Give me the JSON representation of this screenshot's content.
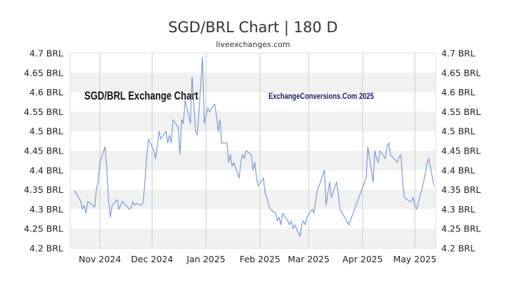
{
  "chart_data": {
    "type": "line",
    "title": "SGD/BRL Chart | 180 D",
    "subtitle": "liveexchanges.com",
    "annotations": [
      "SGD/BRL Exchange Chart",
      "ExchangeConversions.Com 2025"
    ],
    "xlabel": "",
    "ylabel": "",
    "y_ticks": [
      "4.2 BRL",
      "4.25 BRL",
      "4.3 BRL",
      "4.35 BRL",
      "4.4 BRL",
      "4.45 BRL",
      "4.5 BRL",
      "4.55 BRL",
      "4.6 BRL",
      "4.65 BRL",
      "4.7 BRL"
    ],
    "ylim": [
      4.2,
      4.7
    ],
    "x_ticks": [
      {
        "label": "Nov 2024",
        "date": "2024-11-01"
      },
      {
        "label": "Dec 2024",
        "date": "2024-12-01"
      },
      {
        "label": "Jan 2025",
        "date": "2025-01-01"
      },
      {
        "label": "Feb 2025",
        "date": "2025-02-01"
      },
      {
        "label": "Mar 2025",
        "date": "2025-03-01"
      },
      {
        "label": "Apr 2025",
        "date": "2025-04-01"
      },
      {
        "label": "May 2025",
        "date": "2025-05-01"
      }
    ],
    "xlim": [
      "2024-10-15",
      "2025-05-13"
    ],
    "grid": "horizontal bands",
    "line_color": "#6f94d6",
    "series": [
      {
        "x": [
          "2024-10-17",
          "2024-10-18",
          "2024-10-21",
          "2024-10-22",
          "2024-10-23",
          "2024-10-24",
          "2024-10-25",
          "2024-10-28",
          "2024-10-29",
          "2024-10-30",
          "2024-10-31",
          "2024-11-01",
          "2024-11-04",
          "2024-11-05",
          "2024-11-06",
          "2024-11-07",
          "2024-11-08",
          "2024-11-11",
          "2024-11-12",
          "2024-11-13",
          "2024-11-14",
          "2024-11-15",
          "2024-11-18",
          "2024-11-19",
          "2024-11-20",
          "2024-11-21",
          "2024-11-22",
          "2024-11-25",
          "2024-11-26",
          "2024-11-27",
          "2024-11-28",
          "2024-11-29",
          "2024-12-02",
          "2024-12-03",
          "2024-12-04",
          "2024-12-05",
          "2024-12-06",
          "2024-12-09",
          "2024-12-10",
          "2024-12-11",
          "2024-12-12",
          "2024-12-13",
          "2024-12-16",
          "2024-12-17",
          "2024-12-18",
          "2024-12-19",
          "2024-12-20",
          "2024-12-23",
          "2024-12-24",
          "2024-12-26",
          "2024-12-27",
          "2024-12-30",
          "2024-12-31",
          "2025-01-02",
          "2025-01-03",
          "2025-01-06",
          "2025-01-07",
          "2025-01-08",
          "2025-01-09",
          "2025-01-10",
          "2025-01-13",
          "2025-01-14",
          "2025-01-15",
          "2025-01-16",
          "2025-01-17",
          "2025-01-20",
          "2025-01-21",
          "2025-01-22",
          "2025-01-23",
          "2025-01-24",
          "2025-01-27",
          "2025-01-28",
          "2025-01-29",
          "2025-01-30",
          "2025-01-31",
          "2025-02-03",
          "2025-02-04",
          "2025-02-05",
          "2025-02-06",
          "2025-02-07",
          "2025-02-10",
          "2025-02-11",
          "2025-02-12",
          "2025-02-13",
          "2025-02-14",
          "2025-02-17",
          "2025-02-18",
          "2025-02-19",
          "2025-02-20",
          "2025-02-21",
          "2025-02-24",
          "2025-02-25",
          "2025-02-26",
          "2025-02-27",
          "2025-02-28",
          "2025-03-03",
          "2025-03-04",
          "2025-03-05",
          "2025-03-06",
          "2025-03-07",
          "2025-03-10",
          "2025-03-11",
          "2025-03-12",
          "2025-03-13",
          "2025-03-14",
          "2025-03-17",
          "2025-03-18",
          "2025-03-19",
          "2025-03-24",
          "2025-04-03",
          "2025-04-04",
          "2025-04-07",
          "2025-04-08",
          "2025-04-09",
          "2025-04-10",
          "2025-04-11",
          "2025-04-14",
          "2025-04-15",
          "2025-04-16",
          "2025-04-17",
          "2025-04-21",
          "2025-04-22",
          "2025-04-23",
          "2025-04-24",
          "2025-04-25",
          "2025-04-28",
          "2025-04-29",
          "2025-04-30",
          "2025-05-01",
          "2025-05-02",
          "2025-05-05",
          "2025-05-06",
          "2025-05-07",
          "2025-05-08",
          "2025-05-09",
          "2025-05-12"
        ],
        "y": [
          4.345,
          4.345,
          4.32,
          4.3,
          4.31,
          4.29,
          4.32,
          4.31,
          4.305,
          4.35,
          4.37,
          4.42,
          4.46,
          4.4,
          4.32,
          4.28,
          4.31,
          4.325,
          4.3,
          4.31,
          4.32,
          4.315,
          4.3,
          4.305,
          4.32,
          4.31,
          4.315,
          4.31,
          4.32,
          4.38,
          4.44,
          4.48,
          4.45,
          4.43,
          4.46,
          4.5,
          4.48,
          4.5,
          4.47,
          4.49,
          4.47,
          4.53,
          4.51,
          4.44,
          4.53,
          4.52,
          4.58,
          4.52,
          4.64,
          4.5,
          4.49,
          4.69,
          4.52,
          4.56,
          4.55,
          4.57,
          4.54,
          4.5,
          4.53,
          4.47,
          4.47,
          4.42,
          4.44,
          4.41,
          4.42,
          4.38,
          4.42,
          4.44,
          4.43,
          4.45,
          4.44,
          4.4,
          4.42,
          4.38,
          4.36,
          4.38,
          4.34,
          4.33,
          4.31,
          4.3,
          4.29,
          4.27,
          4.28,
          4.26,
          4.29,
          4.27,
          4.26,
          4.27,
          4.25,
          4.26,
          4.23,
          4.26,
          4.27,
          4.26,
          4.28,
          4.3,
          4.29,
          4.32,
          4.35,
          4.36,
          4.4,
          4.31,
          4.34,
          4.37,
          4.33,
          4.37,
          4.34,
          4.3,
          4.26,
          4.38,
          4.46,
          4.37,
          4.45,
          4.43,
          4.42,
          4.45,
          4.43,
          4.46,
          4.47,
          4.44,
          4.42,
          4.435,
          4.44,
          4.37,
          4.33,
          4.32,
          4.32,
          4.33,
          4.31,
          4.3,
          4.35,
          4.37,
          4.39,
          4.42,
          4.43,
          4.36
        ]
      }
    ]
  }
}
